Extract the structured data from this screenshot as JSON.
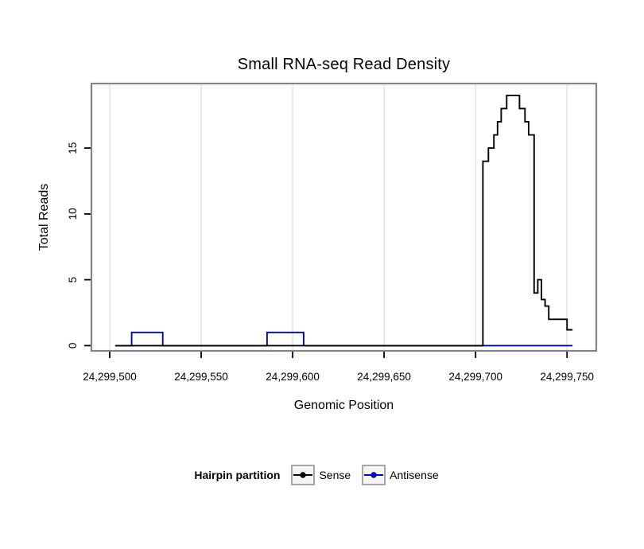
{
  "chart": {
    "title": "Small RNA-seq Read Density",
    "x_axis_title": "Genomic Position",
    "y_axis_title": "Total Reads"
  },
  "legend": {
    "title": "Hairpin partition",
    "items": [
      {
        "label": "Sense",
        "color": "#000000"
      },
      {
        "label": "Antisense",
        "color": "#0000cd"
      }
    ]
  },
  "chart_data": {
    "type": "line",
    "subtype": "step-read-density",
    "title": "Small RNA-seq Read Density",
    "xlabel": "Genomic Position",
    "ylabel": "Total Reads",
    "x_ticks": [
      24299500,
      24299550,
      24299600,
      24299650,
      24299700,
      24299750
    ],
    "x_tick_labels": [
      "24,299,500",
      "24,299,550",
      "24,299,600",
      "24,299,650",
      "24,299,700",
      "24,299,750"
    ],
    "y_ticks": [
      0,
      5,
      10,
      15
    ],
    "xlim": [
      24299490,
      24299766
    ],
    "ylim": [
      -0.4,
      19.9
    ],
    "x_end": 24299753,
    "grid": {
      "vertical": true,
      "horizontal": false,
      "color": "#e2e2e2"
    },
    "panel_border_color": "#848484",
    "legend_position": "bottom",
    "series": [
      {
        "name": "Sense",
        "color": "#000000",
        "step_points": [
          [
            24299503,
            0
          ],
          [
            24299704,
            14
          ],
          [
            24299707,
            15
          ],
          [
            24299710,
            16
          ],
          [
            24299712,
            17
          ],
          [
            24299714,
            18
          ],
          [
            24299717,
            19
          ],
          [
            24299724,
            18
          ],
          [
            24299727,
            17
          ],
          [
            24299729,
            16
          ],
          [
            24299732,
            4
          ],
          [
            24299734,
            5
          ],
          [
            24299736,
            3.5
          ],
          [
            24299738,
            3
          ],
          [
            24299740,
            2
          ],
          [
            24299750,
            1.2
          ]
        ]
      },
      {
        "name": "Antisense",
        "color": "#0000cd",
        "step_points": [
          [
            24299503,
            0
          ],
          [
            24299512,
            1
          ],
          [
            24299529,
            0
          ],
          [
            24299586,
            1
          ],
          [
            24299606,
            0
          ]
        ]
      }
    ]
  }
}
